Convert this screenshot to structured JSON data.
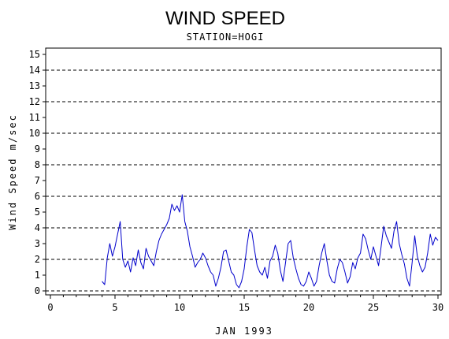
{
  "chart_data": {
    "type": "line",
    "title": "WIND SPEED",
    "subtitle": "STATION=HOGI",
    "xlabel": "JAN 1993",
    "ylabel": "Wind Speed m/sec",
    "xlim": [
      0,
      30
    ],
    "ylim": [
      0,
      15.4
    ],
    "x_ticks": [
      0,
      5,
      10,
      15,
      20,
      25,
      30
    ],
    "y_ticks": [
      0,
      1,
      2,
      3,
      4,
      5,
      6,
      7,
      8,
      9,
      10,
      11,
      12,
      13,
      14,
      15
    ],
    "reference_lines": [
      0,
      2,
      4,
      6,
      8,
      10,
      12,
      14
    ],
    "line_color": "#0000cc",
    "series": [
      {
        "x": [
          4.0,
          4.2,
          4.4,
          4.6,
          4.8,
          5.0,
          5.2,
          5.4,
          5.6,
          5.8,
          6.0,
          6.2,
          6.4,
          6.6,
          6.8,
          7.0,
          7.2,
          7.4,
          7.6,
          7.8,
          8.0,
          8.2,
          8.4,
          8.6,
          8.8,
          9.0,
          9.2,
          9.4,
          9.6,
          9.8,
          10.0,
          10.2,
          10.4,
          10.6,
          10.8,
          11.0,
          11.2,
          11.4,
          11.6,
          11.8,
          12.0,
          12.2,
          12.4,
          12.6,
          12.8,
          13.0,
          13.2,
          13.4,
          13.6,
          13.8,
          14.0,
          14.2,
          14.4,
          14.6,
          14.8,
          15.0,
          15.2,
          15.4,
          15.6,
          15.8,
          16.0,
          16.2,
          16.4,
          16.6,
          16.8,
          17.0,
          17.2,
          17.4,
          17.6,
          17.8,
          18.0,
          18.2,
          18.4,
          18.6,
          18.8,
          19.0,
          19.2,
          19.4,
          19.6,
          19.8,
          20.0,
          20.2,
          20.4,
          20.6,
          20.8,
          21.0,
          21.2,
          21.4,
          21.6,
          21.8,
          22.0,
          22.2,
          22.4,
          22.6,
          22.8,
          23.0,
          23.2,
          23.4,
          23.6,
          23.8,
          24.0,
          24.2,
          24.4,
          24.6,
          24.8,
          25.0,
          25.2,
          25.4,
          25.6,
          25.8,
          26.0,
          26.2,
          26.4,
          26.6,
          26.8,
          27.0,
          27.2,
          27.4,
          27.6,
          27.8,
          28.0,
          28.2,
          28.4,
          28.6,
          28.8,
          29.0,
          29.2,
          29.4,
          29.6,
          29.8,
          30.0
        ],
        "y": [
          0.6,
          0.4,
          2.1,
          3.0,
          2.2,
          2.8,
          3.6,
          4.4,
          2.0,
          1.5,
          1.9,
          1.2,
          2.1,
          1.6,
          2.6,
          1.8,
          1.4,
          2.7,
          2.2,
          1.9,
          1.6,
          2.5,
          3.2,
          3.6,
          3.9,
          4.2,
          4.6,
          5.5,
          5.1,
          5.4,
          5.0,
          6.1,
          4.4,
          3.8,
          2.8,
          2.2,
          1.5,
          1.8,
          2.0,
          2.4,
          2.1,
          1.6,
          1.2,
          1.0,
          0.3,
          0.8,
          1.5,
          2.5,
          2.6,
          1.9,
          1.2,
          1.0,
          0.4,
          0.2,
          0.6,
          1.4,
          2.8,
          3.9,
          3.7,
          2.6,
          1.6,
          1.2,
          1.0,
          1.5,
          0.8,
          1.9,
          2.2,
          2.9,
          2.4,
          1.3,
          0.6,
          1.8,
          3.0,
          3.2,
          2.1,
          1.4,
          0.8,
          0.4,
          0.3,
          0.6,
          1.2,
          0.8,
          0.3,
          0.6,
          1.6,
          2.4,
          3.0,
          1.9,
          1.0,
          0.6,
          0.5,
          1.4,
          2.0,
          1.8,
          1.2,
          0.5,
          0.9,
          1.8,
          1.4,
          2.1,
          2.4,
          3.6,
          3.3,
          2.6,
          2.0,
          2.8,
          2.2,
          1.6,
          2.8,
          4.1,
          3.5,
          3.1,
          2.7,
          3.8,
          4.4,
          3.0,
          2.3,
          1.7,
          0.8,
          0.3,
          1.8,
          3.5,
          2.2,
          1.6,
          1.2,
          1.5,
          2.4,
          3.6,
          2.9,
          3.4,
          3.2
        ]
      }
    ]
  }
}
